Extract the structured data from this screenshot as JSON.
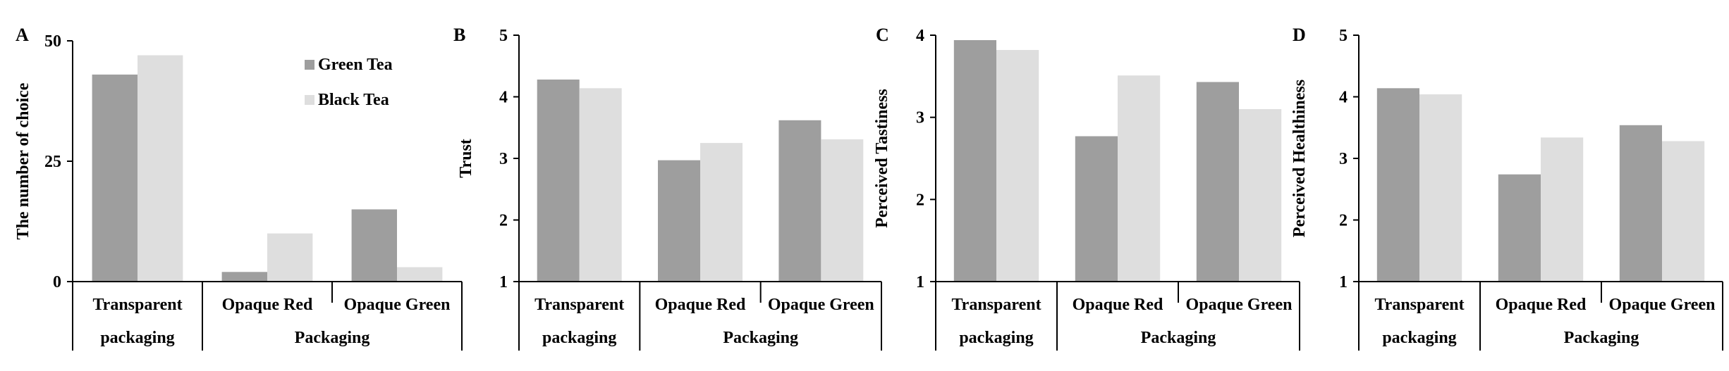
{
  "chart_data": [
    {
      "type": "bar",
      "panel": "A",
      "ylabel": "The number of choice",
      "xlabel": "Packaging",
      "categories": [
        "Transparent packaging",
        "Opaque Red",
        "Opaque Green"
      ],
      "category_lines": [
        [
          "Transparent",
          "packaging"
        ],
        [
          "Opaque Red"
        ],
        [
          "Opaque Green"
        ]
      ],
      "series": [
        {
          "name": "Green Tea",
          "values": [
            43,
            2,
            15
          ]
        },
        {
          "name": "Black Tea",
          "values": [
            47,
            10,
            3
          ]
        }
      ],
      "ylim": [
        0,
        50
      ],
      "yticks": [
        0,
        25,
        50
      ],
      "legend": "top-right"
    },
    {
      "type": "bar",
      "panel": "B",
      "ylabel": "Trust",
      "xlabel": "Packaging",
      "categories": [
        "Transparent packaging",
        "Opaque Red",
        "Opaque Green"
      ],
      "category_lines": [
        [
          "Transparent",
          "packaging"
        ],
        [
          "Opaque Red"
        ],
        [
          "Opaque Green"
        ]
      ],
      "series": [
        {
          "name": "Green Tea",
          "values": [
            4.28,
            2.97,
            3.62
          ]
        },
        {
          "name": "Black Tea",
          "values": [
            4.14,
            3.25,
            3.31
          ]
        }
      ],
      "ylim": [
        1,
        5
      ],
      "yticks": [
        1,
        2,
        3,
        4,
        5
      ]
    },
    {
      "type": "bar",
      "panel": "C",
      "ylabel": "Perceived Tastiness",
      "xlabel": "Packaging",
      "categories": [
        "Transparent packaging",
        "Opaque Red",
        "Opaque Green"
      ],
      "category_lines": [
        [
          "Transparent",
          "packaging"
        ],
        [
          "Opaque Red"
        ],
        [
          "Opaque Green"
        ]
      ],
      "series": [
        {
          "name": "Green Tea",
          "values": [
            3.94,
            2.77,
            3.43
          ]
        },
        {
          "name": "Black Tea",
          "values": [
            3.82,
            3.51,
            3.1
          ]
        }
      ],
      "ylim": [
        1,
        4
      ],
      "yticks": [
        1,
        2,
        3,
        4
      ]
    },
    {
      "type": "bar",
      "panel": "D",
      "ylabel": "Perceived Healthiness",
      "xlabel": "Packaging",
      "categories": [
        "Transparent packaging",
        "Opaque Red",
        "Opaque Green"
      ],
      "category_lines": [
        [
          "Transparent",
          "packaging"
        ],
        [
          "Opaque Red"
        ],
        [
          "Opaque Green"
        ]
      ],
      "series": [
        {
          "name": "Green Tea",
          "values": [
            4.14,
            2.74,
            3.54
          ]
        },
        {
          "name": "Black Tea",
          "values": [
            4.04,
            3.34,
            3.28
          ]
        }
      ],
      "ylim": [
        1,
        5
      ],
      "yticks": [
        1,
        2,
        3,
        4,
        5
      ]
    }
  ],
  "colors": {
    "green_tea": "#9e9e9e",
    "black_tea": "#dedede",
    "axis": "#000000"
  }
}
